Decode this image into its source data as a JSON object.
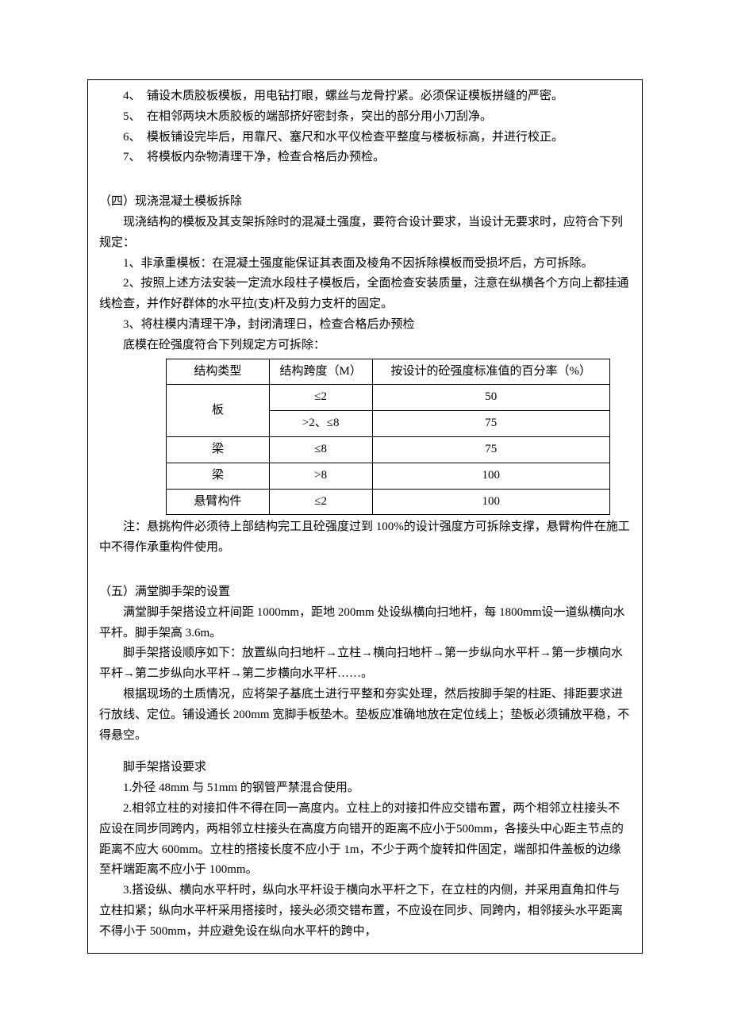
{
  "numberedSteps": {
    "s4": "4、　铺设木质胶板模板，用电钻打眼，螺丝与龙骨拧紧。必须保证模板拼缝的严密。",
    "s5": "5、　在相邻两块木质胶板的端部挤好密封条，突出的部分用小刀刮净。",
    "s6": "6、　模板铺设完毕后，用靠尺、塞尺和水平仪检查平整度与楼板标高，并进行校正。",
    "s7": "7、　将模板内杂物清理干净，检查合格后办预检。"
  },
  "section4": {
    "heading": "（四）现浇混凝土模板拆除",
    "p1": "现浇结构的模板及其支架拆除时的混凝土强度，要符合设计要求，当设计无要求时，应符合下列规定：",
    "p2": "1、非承重模板：在混凝土强度能保证其表面及棱角不因拆除模板而受损坏后，方可拆除。",
    "p3": "2、按照上述方法安装一定流水段柱子模板后，全面检查安装质量，注意在纵横各个方向上都挂通线检查，并作好群体的水平拉(支)杆及剪力支杆的固定。",
    "p4": "3、将柱模内清理干净，封闭清理日，检查合格后办预检",
    "tableIntro": "底模在砼强度符合下列规定方可拆除：",
    "tableNote": "注：悬挑构件必须待上部结构完工且砼强度过到 100%的设计强度方可拆除支撑，悬臂构件在施工中不得作承重构件使用。"
  },
  "table": {
    "headers": [
      "结构类型",
      "结构跨度（M）",
      "按设计的砼强度标准值的百分率（%）"
    ],
    "rows": [
      {
        "type": "板",
        "span": "≤2",
        "pct": "50",
        "rowspan": 2
      },
      {
        "type": null,
        "span": ">2、≤8",
        "pct": "75"
      },
      {
        "type": "梁",
        "span": "≤8",
        "pct": "75"
      },
      {
        "type": "梁",
        "span": ">8",
        "pct": "100"
      },
      {
        "type": "悬臂构件",
        "span": "≤2",
        "pct": "100"
      }
    ]
  },
  "section5": {
    "heading": "（五）满堂脚手架的设置",
    "p1": "满堂脚手架搭设立杆间距 1000mm，距地 200mm 处设纵横向扫地杆，每 1800mm设一道纵横向水平杆。脚手架高 3.6m。",
    "p2": "脚手架搭设顺序如下：放置纵向扫地杆→立柱→横向扫地杆→第一步纵向水平杆→第一步横向水平杆→第二步纵向水平杆→第二步横向水平杆……。",
    "p3": "根据现场的土质情况，应将架子基底土进行平整和夯实处理，然后按脚手架的柱距、排距要求进行放线、定位。铺设通长 200mm 宽脚手板垫木。垫板应准确地放在定位线上；垫板必须铺放平稳，不得悬空。",
    "subhead": "脚手架搭设要求",
    "r1": "1.外径 48mm 与 51mm 的钢管严禁混合使用。",
    "r2": "2.相邻立柱的对接扣件不得在同一高度内。立柱上的对接扣件应交错布置，两个相邻立柱接头不应设在同步同跨内，两相邻立柱接头在高度方向错开的距离不应小于500mm，各接头中心距主节点的距离不应大 600mm。立柱的搭接长度不应小于 1m，不少于两个旋转扣件固定，端部扣件盖板的边缘至杆端距离不应小于 100mm。",
    "r3": "3.搭设纵、横向水平杆时，纵向水平杆设于横向水平杆之下，在立柱的内侧，并采用直角扣件与立柱扣紧；纵向水平杆采用搭接时，接头必须交错布置，不应设在同步、同跨内，相邻接头水平距离不得小于 500mm，并应避免设在纵向水平杆的跨中，"
  }
}
